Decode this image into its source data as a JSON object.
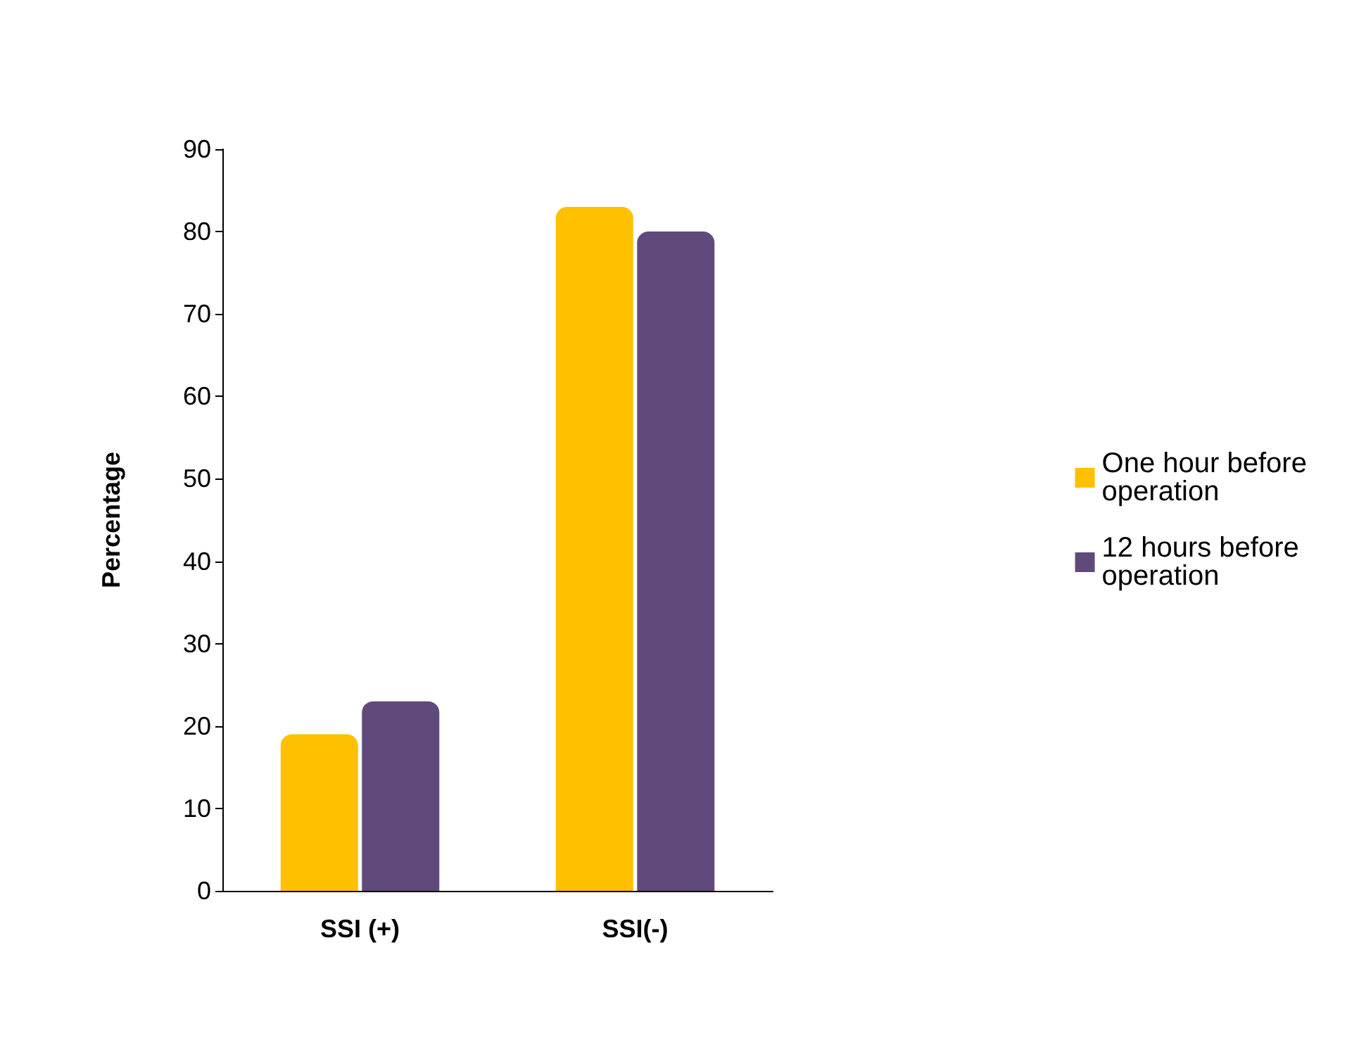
{
  "chart_data": {
    "type": "bar",
    "ylabel": "Percentage",
    "categories": [
      "SSI (+)",
      "SSI(-)"
    ],
    "series": [
      {
        "name": "One hour before operation",
        "color": "#ffc000",
        "values": [
          19,
          83
        ]
      },
      {
        "name": "12 hours before operation",
        "color": "#604a7b",
        "values": [
          23,
          80
        ]
      }
    ],
    "ylim": [
      0,
      90
    ],
    "yticks": [
      0,
      10,
      20,
      30,
      40,
      50,
      60,
      70,
      80,
      90
    ],
    "grid": false,
    "legend": "right"
  }
}
